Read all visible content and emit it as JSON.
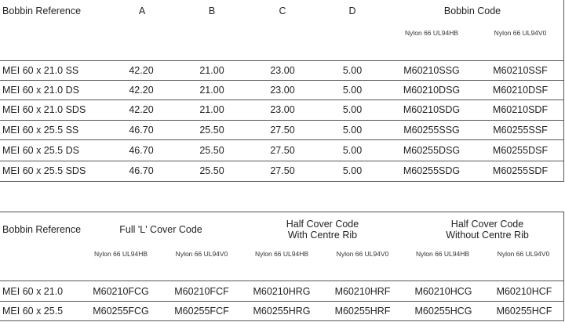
{
  "table1": {
    "headers": {
      "ref": "Bobbin Reference",
      "a": "A",
      "b": "B",
      "c": "C",
      "d": "D",
      "code": "Bobbin Code"
    },
    "subheaders": [
      "Nylon 66 UL94HB",
      "Nylon 66 UL94V0"
    ],
    "rows": [
      {
        "ref": "MEI 60 x 21.0 SS",
        "a": "42.20",
        "b": "21.00",
        "c": "23.00",
        "d": "5.00",
        "hb": "M60210SSG",
        "v0": "M60210SSF"
      },
      {
        "ref": "MEI 60 x 21.0 DS",
        "a": "42.20",
        "b": "21.00",
        "c": "23.00",
        "d": "5.00",
        "hb": "M60210DSG",
        "v0": "M60210DSF"
      },
      {
        "ref": "MEI 60 x 21.0 SDS",
        "a": "42.20",
        "b": "21.00",
        "c": "23.00",
        "d": "5.00",
        "hb": "M60210SDG",
        "v0": "M60210SDF"
      },
      {
        "ref": "MEI 60 x 25.5 SS",
        "a": "46.70",
        "b": "25.50",
        "c": "27.50",
        "d": "5.00",
        "hb": "M60255SSG",
        "v0": "M60255SSF"
      },
      {
        "ref": "MEI 60 x 25.5 DS",
        "a": "46.70",
        "b": "25.50",
        "c": "27.50",
        "d": "5.00",
        "hb": "M60255DSG",
        "v0": "M60255DSF"
      },
      {
        "ref": "MEI 60 x 25.5 SDS",
        "a": "46.70",
        "b": "25.50",
        "c": "27.50",
        "d": "5.00",
        "hb": "M60255SDG",
        "v0": "M60255SDF"
      }
    ]
  },
  "table2": {
    "headers": {
      "ref": "Bobbin Reference",
      "full": "Full 'L' Cover Code",
      "half_rib_1": "Half Cover Code",
      "half_rib_2": "With Centre Rib",
      "half_norib_1": "Half Cover Code",
      "half_norib_2": "Without Centre Rib"
    },
    "subheaders": [
      "Nylon 66 UL94HB",
      "Nylon 66 UL94V0",
      "Nylon 66 UL94HB",
      "Nylon 66 UL94V0",
      "Nylon 66 UL94HB",
      "Nylon 66 UL94V0"
    ],
    "rows": [
      {
        "ref": "MEI 60 x 21.0",
        "fhb": "M60210FCG",
        "fv0": "M60210FCF",
        "rhb": "M60210HRG",
        "rv0": "M60210HRF",
        "chb": "M60210HCG",
        "cv0": "M60210HCF"
      },
      {
        "ref": "MEI 60 x 25.5",
        "fhb": "M60255FCG",
        "fv0": "M60255FCF",
        "rhb": "M60255HRG",
        "rv0": "M60255HRF",
        "chb": "M60255HCG",
        "cv0": "M60255HCF"
      }
    ]
  }
}
